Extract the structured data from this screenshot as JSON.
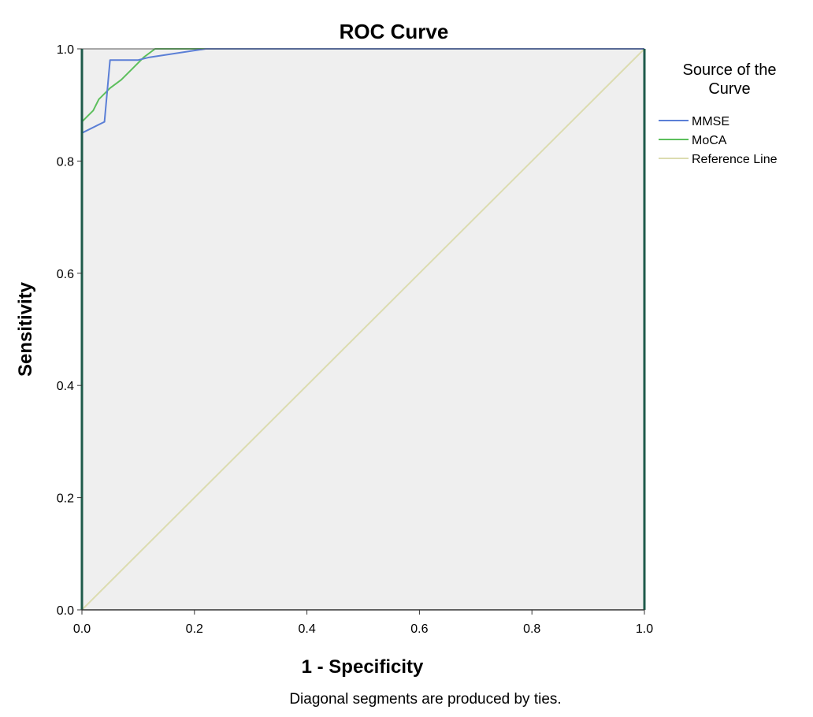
{
  "chart_data": {
    "type": "line",
    "title": "ROC Curve",
    "xlabel": "1 - Specificity",
    "ylabel": "Sensitivity",
    "footnote": "Diagonal segments are produced by ties.",
    "xlim": [
      0,
      1
    ],
    "ylim": [
      0,
      1
    ],
    "xticks": [
      "0.0",
      "0.2",
      "0.4",
      "0.6",
      "0.8",
      "1.0"
    ],
    "yticks": [
      "0.0",
      "0.2",
      "0.4",
      "0.6",
      "0.8",
      "1.0"
    ],
    "grid": false,
    "legend_title": [
      "Source of the",
      "Curve"
    ],
    "legend_position": "right",
    "series": [
      {
        "name": "MMSE",
        "color": "#5b7fd6",
        "x": [
          0,
          0,
          0.04,
          0.05,
          0.06,
          0.1,
          0.12,
          0.22,
          1.0
        ],
        "y": [
          0,
          0.85,
          0.87,
          0.98,
          0.98,
          0.98,
          0.985,
          1.0,
          1.0
        ]
      },
      {
        "name": "MoCA",
        "color": "#5cbf5c",
        "x": [
          0,
          0,
          0.01,
          0.02,
          0.03,
          0.05,
          0.07,
          0.09,
          0.11,
          0.13,
          1.0
        ],
        "y": [
          0,
          0.87,
          0.88,
          0.89,
          0.91,
          0.93,
          0.945,
          0.965,
          0.985,
          1.0,
          1.0
        ]
      },
      {
        "name": "Reference Line",
        "color": "#dcdcb0",
        "x": [
          0,
          1
        ],
        "y": [
          0,
          1
        ]
      }
    ],
    "plot_background": "#efefef",
    "axis_color": "#1e5a4a"
  }
}
